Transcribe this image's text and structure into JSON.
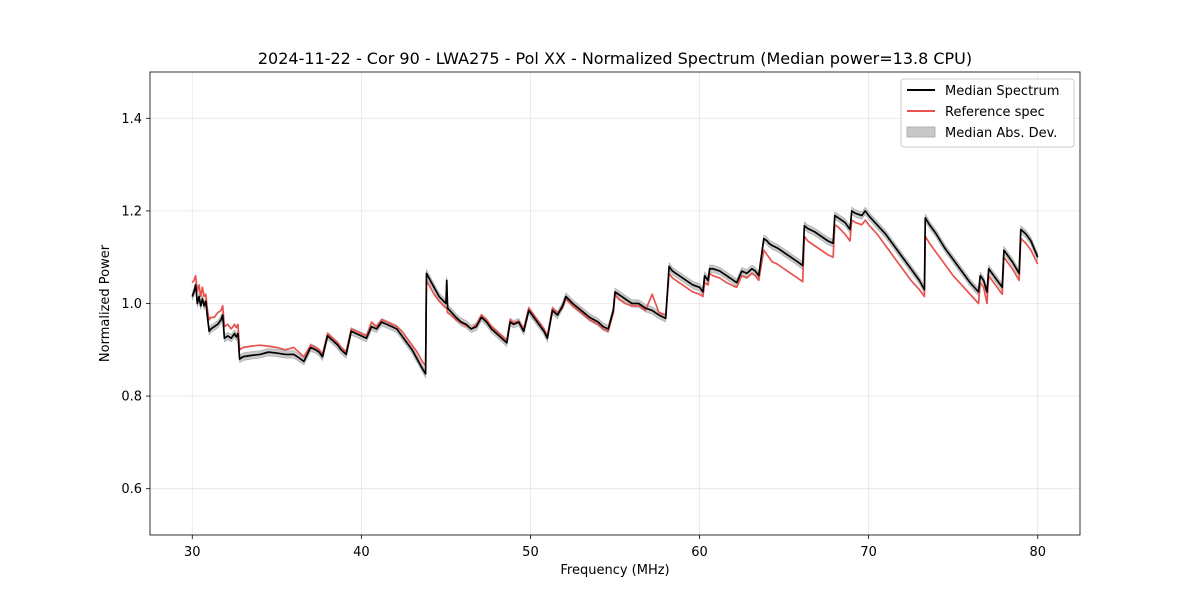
{
  "chart_data": {
    "type": "line",
    "title": "2024-11-22 - Cor 90 - LWA275 - Pol XX - Normalized Spectrum (Median power=13.8 CPU)",
    "xlabel": "Frequency (MHz)",
    "ylabel": "Normalized Power",
    "xlim": [
      27.5,
      82.5
    ],
    "ylim": [
      0.5,
      1.5
    ],
    "xticks": [
      30,
      40,
      50,
      60,
      70,
      80
    ],
    "yticks": [
      0.6,
      0.8,
      1.0,
      1.2,
      1.4
    ],
    "xtick_labels": [
      "30",
      "40",
      "50",
      "60",
      "70",
      "80"
    ],
    "ytick_labels": [
      "0.6",
      "0.8",
      "1.0",
      "1.2",
      "1.4"
    ],
    "grid": true,
    "legend_position": "top-right",
    "legend": [
      "Median Spectrum",
      "Reference spec",
      "Median Abs. Dev."
    ],
    "colors": {
      "median": "#000000",
      "reference": "#e8534f",
      "mad_fill": "#c8c8c8",
      "mad_edge": "#a8a8a8"
    },
    "mad_halfwidth": 0.008,
    "series": [
      {
        "name": "Median Spectrum",
        "x": [
          30.0,
          30.1,
          30.2,
          30.3,
          30.4,
          30.5,
          30.6,
          30.7,
          30.8,
          30.9,
          31.0,
          31.1,
          31.3,
          31.5,
          31.7,
          31.8,
          31.9,
          32.1,
          32.3,
          32.5,
          32.6,
          32.7,
          32.8,
          33.0,
          33.5,
          34.0,
          34.5,
          35.0,
          35.5,
          36.0,
          36.3,
          36.6,
          37.0,
          37.3,
          37.5,
          37.7,
          38.0,
          38.3,
          38.6,
          38.8,
          39.1,
          39.4,
          39.7,
          40.0,
          40.3,
          40.6,
          40.9,
          41.2,
          41.5,
          41.8,
          42.1,
          42.4,
          42.7,
          43.0,
          43.3,
          43.6,
          43.8,
          43.85,
          44.0,
          44.3,
          44.6,
          45.0,
          45.05,
          45.1,
          45.3,
          45.6,
          45.9,
          46.2,
          46.5,
          46.8,
          47.1,
          47.4,
          47.7,
          48.0,
          48.3,
          48.6,
          48.8,
          49.0,
          49.3,
          49.6,
          49.9,
          50.2,
          50.5,
          50.8,
          51.0,
          51.3,
          51.6,
          51.9,
          52.1,
          52.5,
          53.0,
          53.5,
          54.0,
          54.3,
          54.6,
          54.9,
          55.0,
          55.2,
          55.6,
          56.0,
          56.4,
          56.8,
          57.2,
          57.6,
          58.0,
          58.2,
          58.4,
          58.8,
          59.2,
          59.6,
          60.0,
          60.2,
          60.3,
          60.5,
          60.6,
          60.8,
          61.2,
          61.6,
          62.0,
          62.2,
          62.5,
          62.8,
          63.1,
          63.3,
          63.5,
          63.8,
          64.0,
          64.1,
          64.3,
          64.6,
          65.0,
          65.4,
          65.8,
          66.1,
          66.2,
          66.4,
          66.8,
          67.2,
          67.6,
          67.9,
          68.0,
          68.2,
          68.6,
          68.9,
          69.0,
          69.2,
          69.6,
          69.8,
          70.0,
          70.5,
          71.0,
          71.5,
          72.0,
          72.5,
          73.0,
          73.3,
          73.35,
          73.6,
          74.0,
          74.5,
          75.0,
          75.5,
          76.0,
          76.5,
          76.6,
          76.8,
          77.0,
          77.1,
          77.3,
          77.6,
          77.9,
          78.0,
          78.2,
          78.5,
          78.9,
          79.0,
          79.3,
          79.6,
          80.0
        ],
        "y": [
          1.015,
          1.025,
          1.04,
          1.0,
          1.015,
          0.995,
          1.01,
          0.995,
          1.005,
          0.97,
          0.94,
          0.945,
          0.95,
          0.955,
          0.965,
          0.975,
          0.925,
          0.93,
          0.925,
          0.935,
          0.928,
          0.935,
          0.88,
          0.885,
          0.888,
          0.89,
          0.895,
          0.893,
          0.89,
          0.89,
          0.883,
          0.875,
          0.905,
          0.9,
          0.895,
          0.885,
          0.93,
          0.92,
          0.91,
          0.9,
          0.89,
          0.94,
          0.935,
          0.93,
          0.925,
          0.95,
          0.945,
          0.96,
          0.955,
          0.95,
          0.945,
          0.93,
          0.915,
          0.9,
          0.88,
          0.86,
          0.848,
          1.065,
          1.055,
          1.035,
          1.015,
          1.0,
          1.05,
          0.99,
          0.982,
          0.97,
          0.96,
          0.955,
          0.945,
          0.95,
          0.97,
          0.96,
          0.945,
          0.935,
          0.925,
          0.915,
          0.96,
          0.955,
          0.96,
          0.94,
          0.985,
          0.97,
          0.955,
          0.94,
          0.925,
          0.985,
          0.975,
          0.995,
          1.015,
          1.0,
          0.985,
          0.97,
          0.96,
          0.95,
          0.945,
          0.985,
          1.025,
          1.02,
          1.01,
          1.0,
          1.0,
          0.99,
          0.985,
          0.975,
          0.968,
          1.08,
          1.07,
          1.06,
          1.05,
          1.04,
          1.035,
          1.025,
          1.06,
          1.05,
          1.075,
          1.075,
          1.07,
          1.06,
          1.05,
          1.045,
          1.07,
          1.065,
          1.075,
          1.07,
          1.06,
          1.14,
          1.135,
          1.13,
          1.125,
          1.12,
          1.11,
          1.1,
          1.09,
          1.082,
          1.168,
          1.162,
          1.155,
          1.145,
          1.135,
          1.13,
          1.19,
          1.185,
          1.175,
          1.16,
          1.2,
          1.195,
          1.19,
          1.2,
          1.19,
          1.17,
          1.15,
          1.125,
          1.1,
          1.075,
          1.05,
          1.03,
          1.185,
          1.17,
          1.15,
          1.12,
          1.095,
          1.07,
          1.045,
          1.025,
          1.06,
          1.05,
          1.025,
          1.075,
          1.065,
          1.05,
          1.035,
          1.115,
          1.105,
          1.09,
          1.065,
          1.16,
          1.15,
          1.135,
          1.1
        ]
      },
      {
        "name": "Reference spec",
        "x": [
          30.0,
          30.1,
          30.2,
          30.3,
          30.4,
          30.5,
          30.6,
          30.7,
          30.8,
          30.9,
          31.0,
          31.1,
          31.3,
          31.5,
          31.7,
          31.8,
          31.9,
          32.1,
          32.3,
          32.5,
          32.6,
          32.7,
          32.8,
          33.0,
          33.5,
          34.0,
          34.5,
          35.0,
          35.5,
          36.0,
          36.3,
          36.6,
          37.0,
          37.3,
          37.5,
          37.7,
          38.0,
          38.3,
          38.6,
          38.8,
          39.1,
          39.4,
          39.7,
          40.0,
          40.3,
          40.6,
          40.9,
          41.2,
          41.5,
          41.8,
          42.1,
          42.4,
          42.7,
          43.0,
          43.3,
          43.6,
          43.8,
          43.85,
          44.0,
          44.3,
          44.6,
          45.0,
          45.05,
          45.1,
          45.3,
          45.6,
          45.9,
          46.2,
          46.5,
          46.8,
          47.1,
          47.4,
          47.7,
          48.0,
          48.3,
          48.6,
          48.8,
          49.0,
          49.3,
          49.6,
          49.9,
          50.2,
          50.5,
          50.8,
          51.0,
          51.3,
          51.6,
          51.9,
          52.1,
          52.5,
          53.0,
          53.5,
          54.0,
          54.3,
          54.6,
          54.9,
          55.0,
          55.2,
          55.6,
          56.0,
          56.4,
          56.8,
          57.2,
          57.6,
          58.0,
          58.2,
          58.4,
          58.8,
          59.2,
          59.6,
          60.0,
          60.2,
          60.3,
          60.5,
          60.6,
          60.8,
          61.2,
          61.6,
          62.0,
          62.2,
          62.5,
          62.8,
          63.1,
          63.3,
          63.5,
          63.8,
          64.0,
          64.1,
          64.3,
          64.6,
          65.0,
          65.4,
          65.8,
          66.1,
          66.2,
          66.4,
          66.8,
          67.2,
          67.6,
          67.9,
          68.0,
          68.2,
          68.6,
          68.9,
          69.0,
          69.2,
          69.6,
          69.8,
          70.0,
          70.5,
          71.0,
          71.5,
          72.0,
          72.5,
          73.0,
          73.3,
          73.35,
          73.6,
          74.0,
          74.5,
          75.0,
          75.5,
          76.0,
          76.5,
          76.6,
          76.8,
          77.0,
          77.1,
          77.3,
          77.6,
          77.9,
          78.0,
          78.2,
          78.5,
          78.9,
          79.0,
          79.3,
          79.6,
          80.0
        ],
        "y": [
          1.045,
          1.05,
          1.06,
          1.025,
          1.04,
          1.015,
          1.035,
          1.015,
          1.02,
          0.985,
          0.965,
          0.97,
          0.97,
          0.98,
          0.985,
          0.995,
          0.95,
          0.955,
          0.945,
          0.955,
          0.948,
          0.955,
          0.9,
          0.905,
          0.908,
          0.91,
          0.908,
          0.905,
          0.9,
          0.905,
          0.895,
          0.885,
          0.91,
          0.905,
          0.9,
          0.89,
          0.935,
          0.925,
          0.915,
          0.905,
          0.895,
          0.945,
          0.94,
          0.935,
          0.93,
          0.96,
          0.95,
          0.965,
          0.96,
          0.955,
          0.95,
          0.94,
          0.925,
          0.91,
          0.895,
          0.875,
          0.865,
          1.05,
          1.04,
          1.02,
          1.005,
          0.99,
          0.99,
          0.98,
          0.975,
          0.965,
          0.958,
          0.952,
          0.945,
          0.955,
          0.975,
          0.965,
          0.95,
          0.94,
          0.93,
          0.92,
          0.965,
          0.958,
          0.962,
          0.945,
          0.99,
          0.975,
          0.96,
          0.945,
          0.93,
          0.99,
          0.98,
          0.99,
          1.01,
          0.995,
          0.98,
          0.965,
          0.955,
          0.945,
          0.94,
          0.98,
          1.02,
          1.01,
          1.0,
          0.995,
          0.995,
          0.985,
          1.02,
          0.98,
          0.975,
          1.065,
          1.055,
          1.045,
          1.035,
          1.025,
          1.02,
          1.015,
          1.045,
          1.04,
          1.065,
          1.06,
          1.055,
          1.045,
          1.038,
          1.035,
          1.06,
          1.055,
          1.065,
          1.06,
          1.05,
          1.115,
          1.105,
          1.1,
          1.09,
          1.085,
          1.075,
          1.065,
          1.055,
          1.047,
          1.145,
          1.135,
          1.125,
          1.115,
          1.105,
          1.1,
          1.17,
          1.165,
          1.15,
          1.135,
          1.18,
          1.175,
          1.17,
          1.18,
          1.17,
          1.15,
          1.125,
          1.1,
          1.075,
          1.05,
          1.03,
          1.015,
          1.145,
          1.13,
          1.11,
          1.085,
          1.06,
          1.04,
          1.02,
          1.0,
          1.045,
          1.035,
          1.0,
          1.06,
          1.05,
          1.035,
          1.02,
          1.1,
          1.09,
          1.075,
          1.05,
          1.14,
          1.13,
          1.115,
          1.085
        ]
      }
    ]
  }
}
